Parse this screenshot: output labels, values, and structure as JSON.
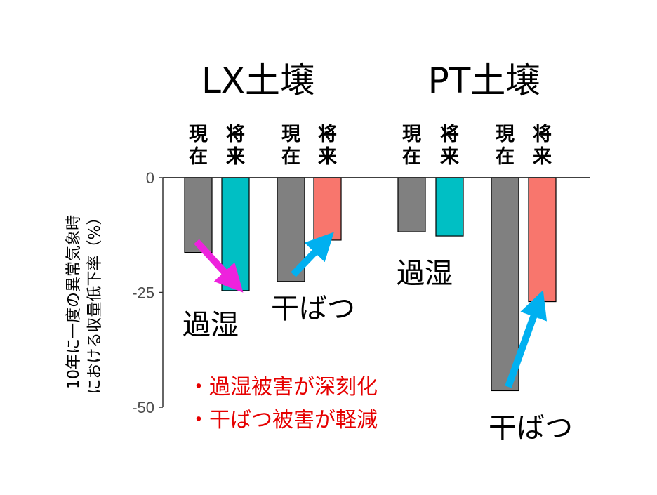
{
  "chart_data": {
    "type": "bar",
    "panels": [
      {
        "title": "LX土壌",
        "groups": [
          {
            "annotation": "過湿",
            "bars": [
              {
                "label": [
                  "現",
                  "在"
                ],
                "value": -16.3,
                "color": "#808080"
              },
              {
                "label": [
                  "将",
                  "来"
                ],
                "value": -24.6,
                "color": "#00bfc4"
              }
            ]
          },
          {
            "annotation": "干ばつ",
            "bars": [
              {
                "label": [
                  "現",
                  "在"
                ],
                "value": -22.6,
                "color": "#808080"
              },
              {
                "label": [
                  "将",
                  "来"
                ],
                "value": -13.6,
                "color": "#f8766d"
              }
            ]
          }
        ]
      },
      {
        "title": "PT土壌",
        "groups": [
          {
            "annotation": "過湿",
            "bars": [
              {
                "label": [
                  "現",
                  "在"
                ],
                "value": -11.8,
                "color": "#808080"
              },
              {
                "label": [
                  "将",
                  "来"
                ],
                "value": -12.7,
                "color": "#00bfc4"
              }
            ]
          },
          {
            "annotation": "干ばつ",
            "bars": [
              {
                "label": [
                  "現",
                  "在"
                ],
                "value": -46.4,
                "color": "#808080"
              },
              {
                "label": [
                  "将",
                  "来"
                ],
                "value": -27.0,
                "color": "#f8766d"
              }
            ]
          }
        ]
      }
    ],
    "ylabel_lines": [
      "10年に一度の異常気象時",
      "における収量低下率（%）"
    ],
    "yticks": [
      0,
      -25,
      -50
    ],
    "ytick_labels": [
      "0",
      "-25",
      "-50"
    ],
    "ylim": [
      -50,
      0
    ],
    "arrow_colors": {
      "wet": "#ee22dd",
      "drought": "#00b0f0"
    },
    "notes": [
      "・過湿被害が深刻化",
      "・干ばつ被害が軽減"
    ],
    "note_color": "#e60000"
  }
}
